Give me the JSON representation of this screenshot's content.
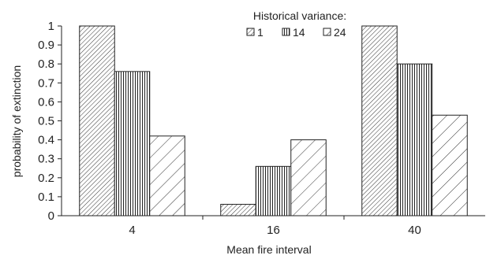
{
  "chart_data": {
    "type": "bar",
    "categories": [
      "4",
      "16",
      "40"
    ],
    "series": [
      {
        "name": "1",
        "values": [
          1.0,
          0.06,
          1.0
        ],
        "pattern": "diag-fine"
      },
      {
        "name": "14",
        "values": [
          0.76,
          0.26,
          0.8
        ],
        "pattern": "vertical"
      },
      {
        "name": "24",
        "values": [
          0.42,
          0.4,
          0.53
        ],
        "pattern": "diag-wide"
      }
    ],
    "xlabel": "Mean fire interval",
    "ylabel": "probability of extinction",
    "ylim": [
      0,
      1
    ],
    "yticks": [
      "0",
      "0.1",
      "0.2",
      "0.3",
      "0.4",
      "0.5",
      "0.6",
      "0.7",
      "0.8",
      "0.9",
      "1"
    ],
    "grid": false,
    "legend": {
      "title": "Historical variance:",
      "placement": "top-center"
    },
    "colors": {
      "stroke": "#222222",
      "fill": "#ffffff"
    }
  }
}
